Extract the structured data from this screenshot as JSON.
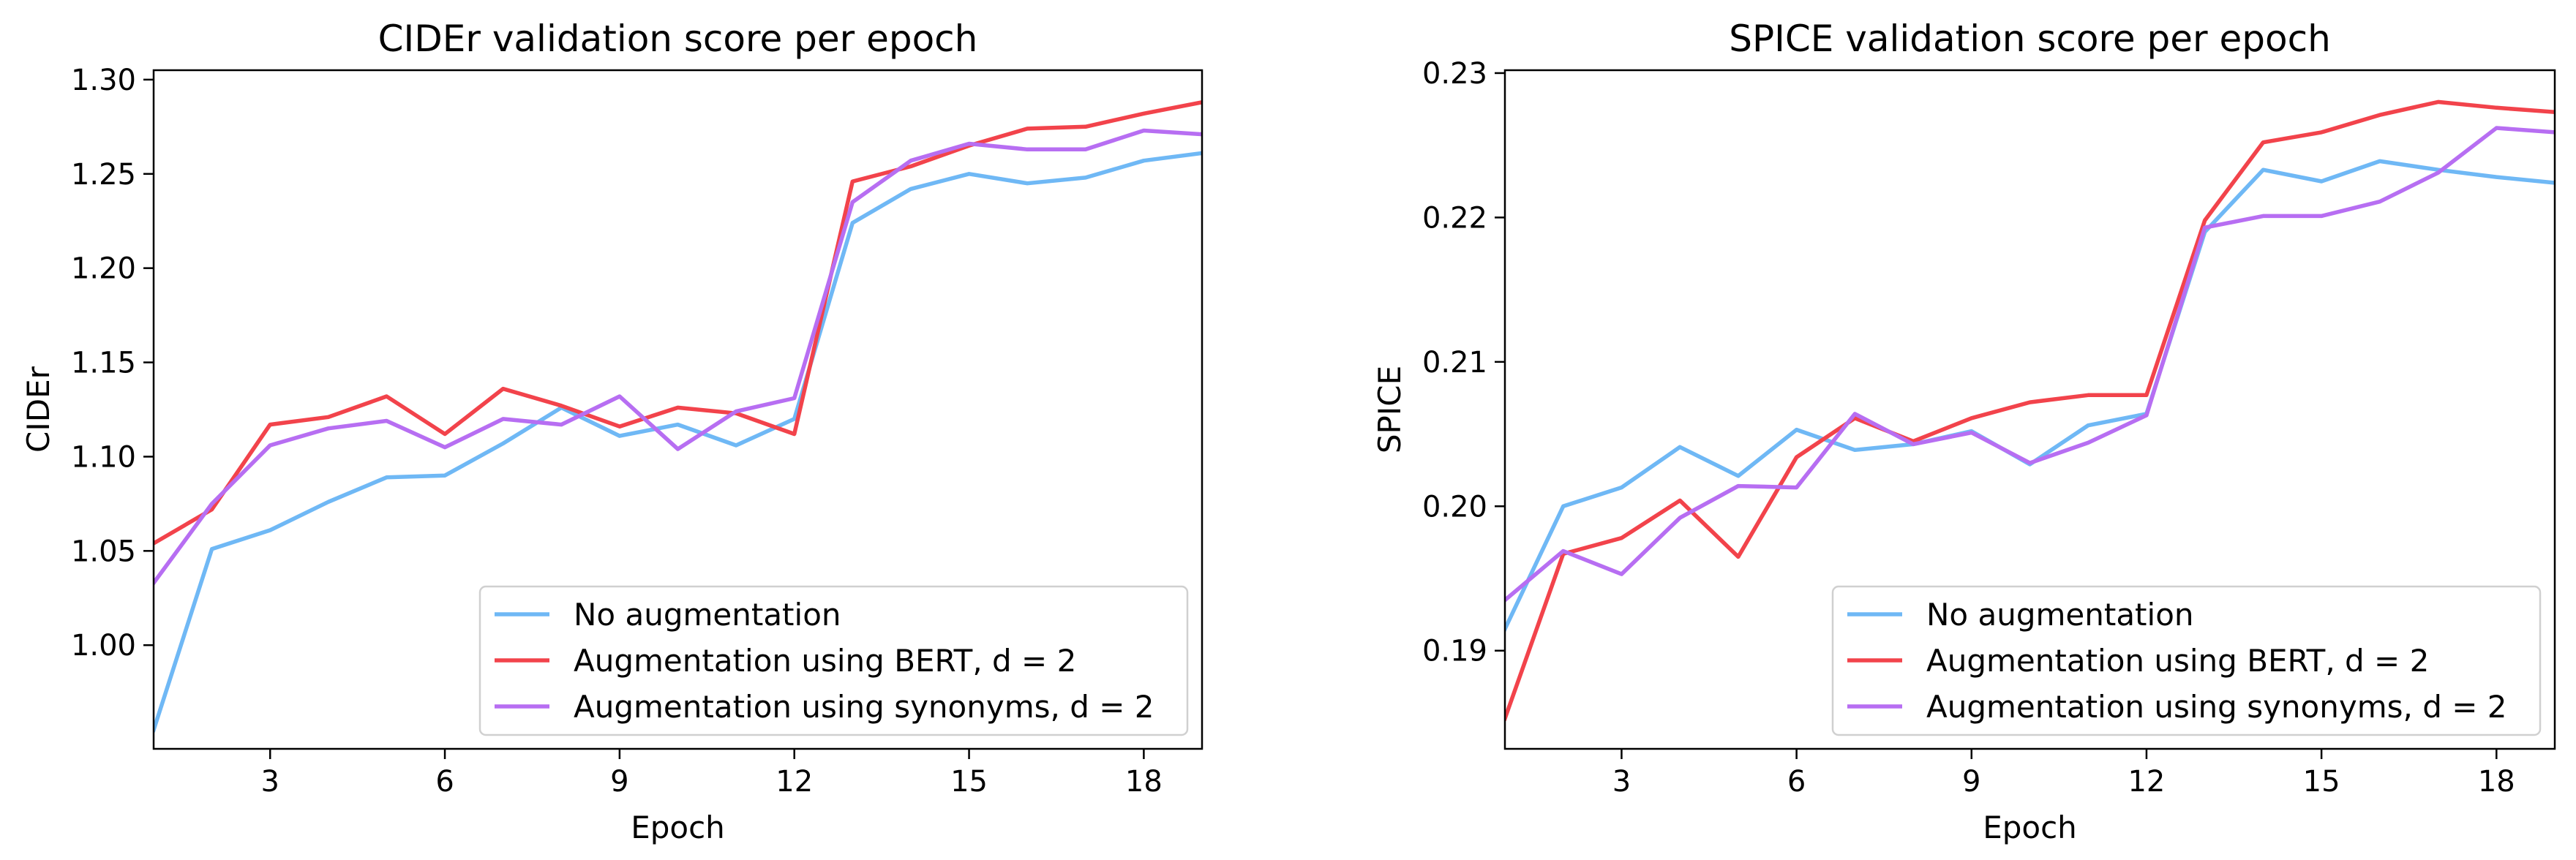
{
  "chart_data": [
    {
      "type": "line",
      "title": "CIDEr validation score per epoch",
      "xlabel": "Epoch",
      "ylabel": "CIDEr",
      "xlim": [
        1,
        19
      ],
      "ylim": [
        0.945,
        1.305
      ],
      "xticks": [
        3,
        6,
        9,
        12,
        15,
        18
      ],
      "xtick_labels": [
        "3",
        "6",
        "9",
        "12",
        "15",
        "18"
      ],
      "yticks": [
        1.0,
        1.05,
        1.1,
        1.15,
        1.2,
        1.25,
        1.3
      ],
      "ytick_labels": [
        "1.00",
        "1.05",
        "1.10",
        "1.15",
        "1.20",
        "1.25",
        "1.30"
      ],
      "legend_position": "lower-right",
      "x": [
        1,
        2,
        3,
        4,
        5,
        6,
        7,
        8,
        9,
        10,
        11,
        12,
        13,
        14,
        15,
        16,
        17,
        18,
        19
      ],
      "series": [
        {
          "name": "No augmentation",
          "color": "#6fb8f5",
          "values": [
            0.955,
            1.051,
            1.061,
            1.076,
            1.089,
            1.09,
            1.107,
            1.126,
            1.111,
            1.117,
            1.106,
            1.12,
            1.224,
            1.242,
            1.25,
            1.245,
            1.248,
            1.257,
            1.261
          ]
        },
        {
          "name": "Augmentation using BERT, d = 2",
          "color": "#f2434b",
          "values": [
            1.054,
            1.072,
            1.117,
            1.121,
            1.132,
            1.112,
            1.136,
            1.127,
            1.116,
            1.126,
            1.123,
            1.112,
            1.246,
            1.254,
            1.265,
            1.274,
            1.275,
            1.282,
            1.288
          ]
        },
        {
          "name": "Augmentation using synonyms, d = 2",
          "color": "#b76ef2",
          "values": [
            1.033,
            1.075,
            1.106,
            1.115,
            1.119,
            1.105,
            1.12,
            1.117,
            1.132,
            1.104,
            1.124,
            1.131,
            1.235,
            1.257,
            1.266,
            1.263,
            1.263,
            1.273,
            1.271
          ]
        }
      ]
    },
    {
      "type": "line",
      "title": "SPICE validation score per epoch",
      "xlabel": "Epoch",
      "ylabel": "SPICE",
      "xlim": [
        1,
        19
      ],
      "ylim": [
        0.1832,
        0.2302
      ],
      "xticks": [
        3,
        6,
        9,
        12,
        15,
        18
      ],
      "xtick_labels": [
        "3",
        "6",
        "9",
        "12",
        "15",
        "18"
      ],
      "yticks": [
        0.19,
        0.2,
        0.21,
        0.22,
        0.23
      ],
      "ytick_labels": [
        "0.19",
        "0.20",
        "0.21",
        "0.22",
        "0.23"
      ],
      "legend_position": "lower-right",
      "x": [
        1,
        2,
        3,
        4,
        5,
        6,
        7,
        8,
        9,
        10,
        11,
        12,
        13,
        14,
        15,
        16,
        17,
        18,
        19
      ],
      "series": [
        {
          "name": "No augmentation",
          "color": "#6fb8f5",
          "values": [
            0.1915,
            0.2,
            0.2013,
            0.2041,
            0.2021,
            0.2053,
            0.2039,
            0.2043,
            0.2052,
            0.2029,
            0.2056,
            0.2064,
            0.219,
            0.2233,
            0.2225,
            0.2239,
            0.2233,
            0.2228,
            0.2224
          ]
        },
        {
          "name": "Augmentation using BERT, d = 2",
          "color": "#f2434b",
          "values": [
            0.1853,
            0.1967,
            0.1978,
            0.2004,
            0.1965,
            0.2034,
            0.2061,
            0.2045,
            0.2061,
            0.2072,
            0.2077,
            0.2077,
            0.2198,
            0.2252,
            0.2259,
            0.2271,
            0.228,
            0.2276,
            0.2273
          ]
        },
        {
          "name": "Augmentation using synonyms, d = 2",
          "color": "#b76ef2",
          "values": [
            0.1935,
            0.1969,
            0.1953,
            0.1992,
            0.2014,
            0.2013,
            0.2064,
            0.2043,
            0.2051,
            0.203,
            0.2044,
            0.2063,
            0.2193,
            0.2201,
            0.2201,
            0.2211,
            0.2231,
            0.2262,
            0.2259
          ]
        }
      ]
    }
  ]
}
